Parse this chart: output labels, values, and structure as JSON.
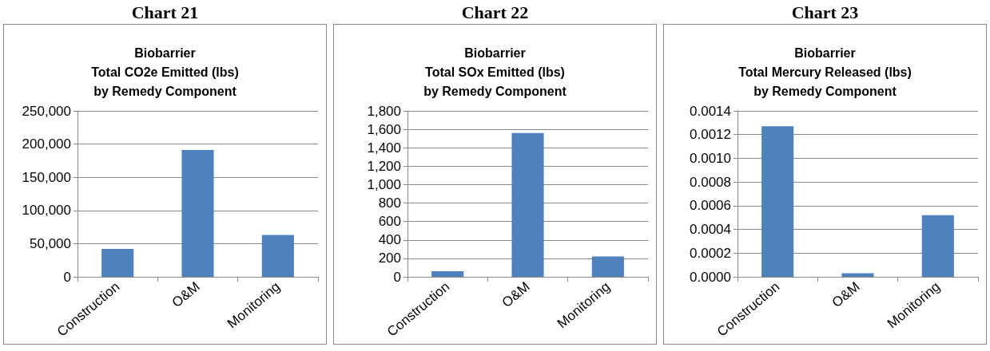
{
  "chart_data": [
    {
      "type": "bar",
      "title": "Chart 21",
      "subtitle": "Biobarrier\nTotal CO2e Emitted (lbs)\nby Remedy Component",
      "categories": [
        "Construction",
        "O&M",
        "Monitoring"
      ],
      "values": [
        42000,
        191000,
        63000
      ],
      "color": "#4f81bd",
      "ylim": [
        0,
        250000
      ],
      "yticks": [
        {
          "value": 0,
          "label": "0"
        },
        {
          "value": 50000,
          "label": "50,000"
        },
        {
          "value": 100000,
          "label": "100,000"
        },
        {
          "value": 150000,
          "label": "150,000"
        },
        {
          "value": 200000,
          "label": "200,000"
        },
        {
          "value": 250000,
          "label": "250,000"
        }
      ],
      "grid": "y"
    },
    {
      "type": "bar",
      "title": "Chart 22",
      "subtitle": "Biobarrier\nTotal SOx Emitted (lbs)\nby Remedy Component",
      "categories": [
        "Construction",
        "O&M",
        "Monitoring"
      ],
      "values": [
        60,
        1560,
        220
      ],
      "color": "#4f81bd",
      "ylim": [
        0,
        1800
      ],
      "yticks": [
        0,
        200,
        400,
        600,
        800,
        {
          "value": 1000,
          "label": "1,000"
        },
        {
          "value": 1200,
          "label": "1,200"
        },
        {
          "value": 1400,
          "label": "1,400"
        },
        {
          "value": 1600,
          "label": "1,600"
        },
        {
          "value": 1800,
          "label": "1,800"
        }
      ],
      "grid": "y"
    },
    {
      "type": "bar",
      "title": "Chart 23",
      "subtitle": "Biobarrier\nTotal Mercury Released (lbs)\nby Remedy Component",
      "categories": [
        "Construction",
        "O&M",
        "Monitoring"
      ],
      "values": [
        0.00127,
        3e-05,
        0.00052
      ],
      "color": "#4f81bd",
      "ylim": [
        0,
        0.0014
      ],
      "yticks": [
        {
          "value": 0,
          "label": "0.0000"
        },
        {
          "value": 0.0002,
          "label": "0.0002"
        },
        {
          "value": 0.0004,
          "label": "0.0004"
        },
        {
          "value": 0.0006,
          "label": "0.0006"
        },
        {
          "value": 0.0008,
          "label": "0.0008"
        },
        {
          "value": 0.001,
          "label": "0.0010"
        },
        {
          "value": 0.0012,
          "label": "0.0012"
        },
        {
          "value": 0.0014,
          "label": "0.0014"
        }
      ],
      "grid": "y"
    }
  ]
}
